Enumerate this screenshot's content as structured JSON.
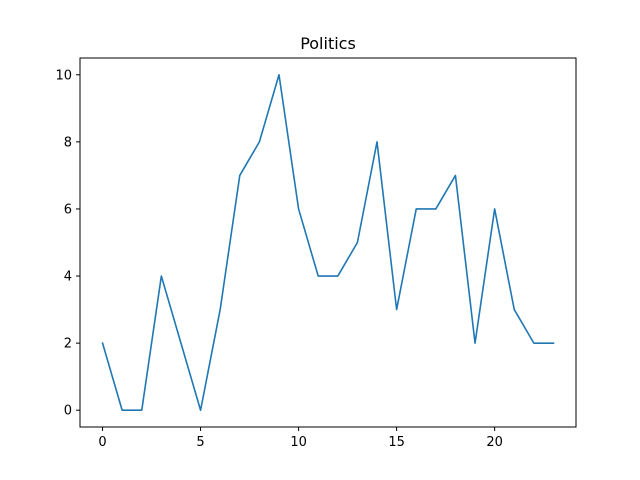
{
  "chart_data": {
    "type": "line",
    "title": "Politics",
    "xlabel": "",
    "ylabel": "",
    "x": [
      0,
      1,
      2,
      3,
      4,
      5,
      6,
      7,
      8,
      9,
      10,
      11,
      12,
      13,
      14,
      15,
      16,
      17,
      18,
      19,
      20,
      21,
      22,
      23
    ],
    "series": [
      {
        "values": [
          2,
          0,
          0,
          4,
          2,
          0,
          3,
          7,
          8,
          10,
          6,
          4,
          4,
          5,
          8,
          3,
          6,
          6,
          7,
          2,
          6,
          3,
          2,
          2
        ],
        "color": "#1f77b4"
      }
    ],
    "xlim": [
      -1.15,
      24.15
    ],
    "ylim": [
      -0.5,
      10.5
    ],
    "xticks": [
      0,
      5,
      10,
      15,
      20
    ],
    "yticks": [
      0,
      2,
      4,
      6,
      8,
      10
    ],
    "xtick_labels": [
      "0",
      "5",
      "10",
      "15",
      "20"
    ],
    "ytick_labels": [
      "0",
      "2",
      "4",
      "6",
      "8",
      "10"
    ],
    "grid": false,
    "legend": "none"
  }
}
